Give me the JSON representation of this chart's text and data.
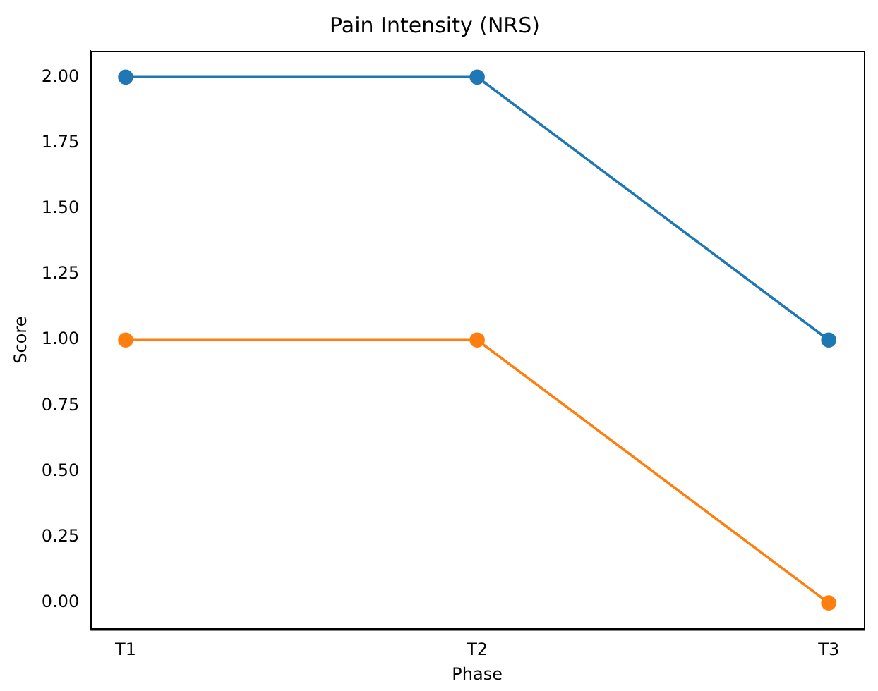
{
  "chart_data": {
    "type": "line",
    "title": "Pain Intensity (NRS)",
    "xlabel": "Phase",
    "ylabel": "Score",
    "categories": [
      "T1",
      "T2",
      "T3"
    ],
    "series": [
      {
        "color": "#1f77b4",
        "values": [
          2,
          2,
          1
        ]
      },
      {
        "color": "#ff7f0e",
        "values": [
          1,
          1,
          0
        ]
      }
    ],
    "ylim": [
      -0.1,
      2.1
    ],
    "yticks": [
      {
        "value": 0,
        "label": "0.00"
      },
      {
        "value": 0.25,
        "label": "0.25"
      },
      {
        "value": 0.5,
        "label": "0.50"
      },
      {
        "value": 0.75,
        "label": "0.75"
      },
      {
        "value": 1,
        "label": "1.00"
      },
      {
        "value": 1.25,
        "label": "1.25"
      },
      {
        "value": 1.5,
        "label": "1.50"
      },
      {
        "value": 1.75,
        "label": "1.75"
      },
      {
        "value": 2,
        "label": "2.00"
      }
    ],
    "grid": false,
    "legend": false,
    "marker": "circle",
    "line_style": "solid"
  }
}
